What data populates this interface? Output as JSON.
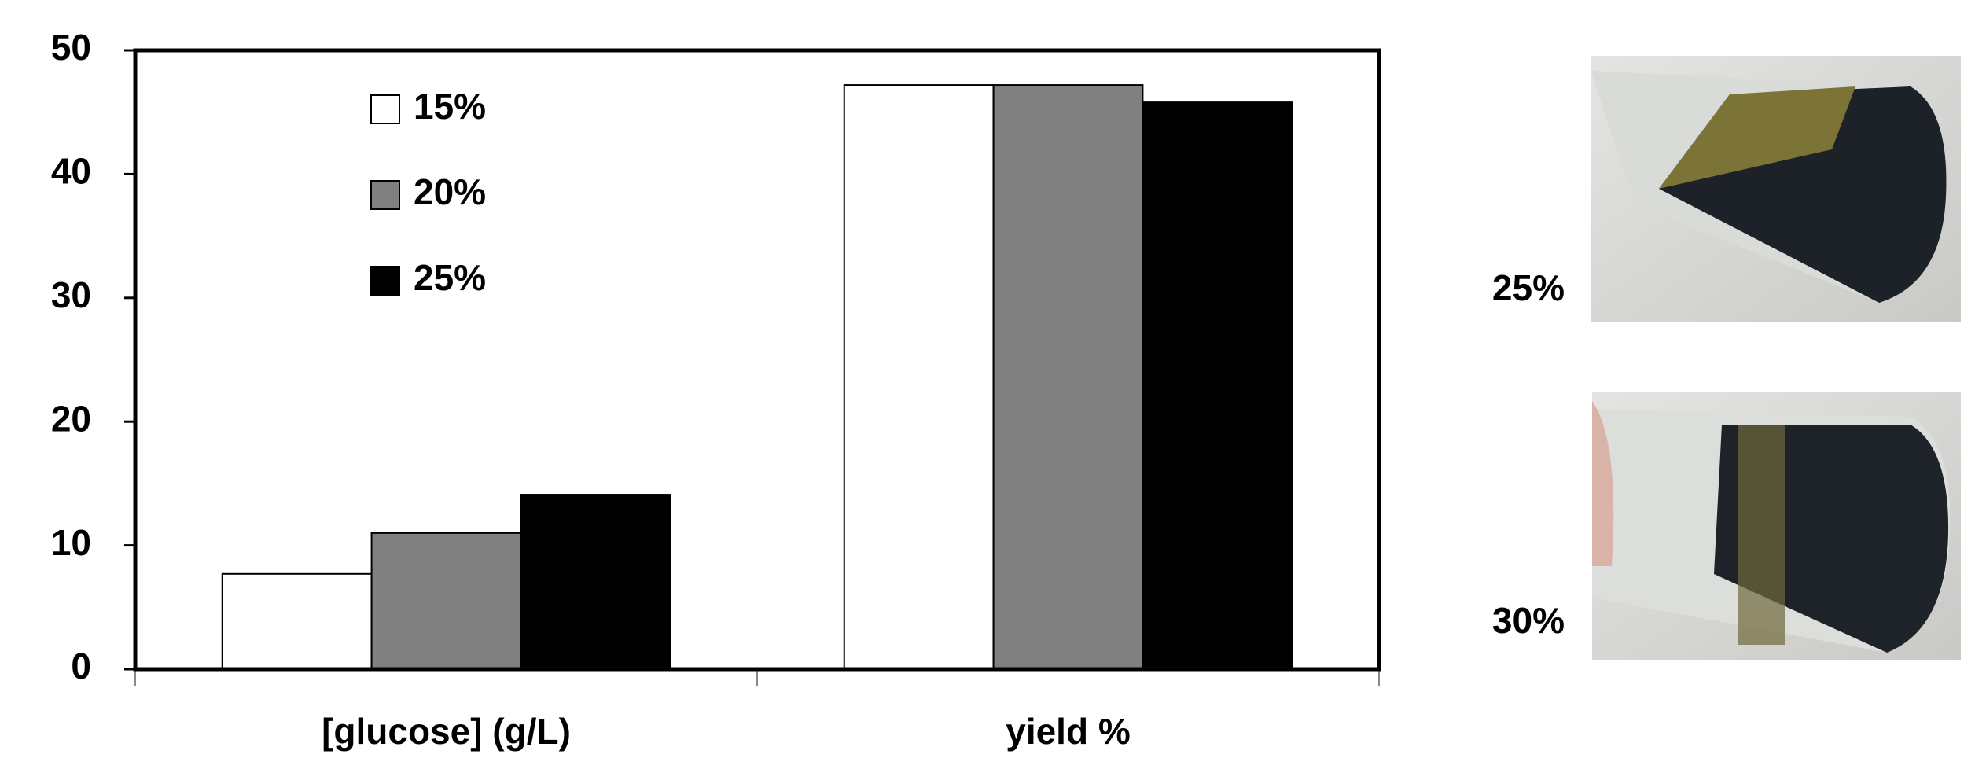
{
  "chart_data": {
    "type": "bar",
    "categories": [
      "[glucose] (g/L)",
      "yield %"
    ],
    "series": [
      {
        "name": "15%",
        "color": "#ffffff",
        "values": [
          7.7,
          47.2
        ]
      },
      {
        "name": "20%",
        "color": "#808080",
        "values": [
          11,
          47.2
        ]
      },
      {
        "name": "25%",
        "color": "#000000",
        "values": [
          14.1,
          45.8
        ]
      }
    ],
    "ylim": [
      0,
      50
    ],
    "yticks": [
      0,
      10,
      20,
      30,
      40,
      50
    ],
    "grid": false,
    "legend": "upper-left"
  },
  "photos": [
    {
      "label": "25%"
    },
    {
      "label": "30%"
    }
  ]
}
